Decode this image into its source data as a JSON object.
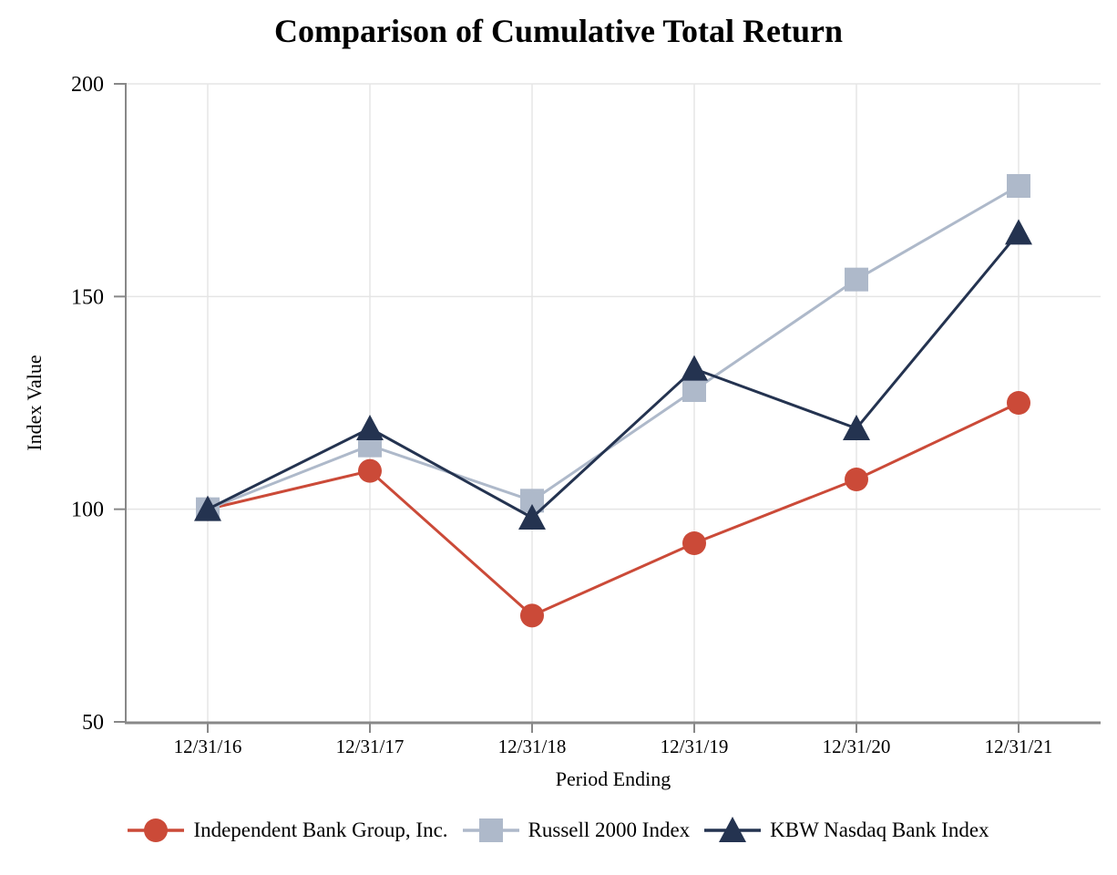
{
  "chart_data": {
    "type": "line",
    "title": "Comparison of Cumulative Total Return",
    "xlabel": "Period Ending",
    "ylabel": "Index Value",
    "categories": [
      "12/31/16",
      "12/31/17",
      "12/31/18",
      "12/31/19",
      "12/31/20",
      "12/31/21"
    ],
    "y_ticks": [
      200,
      150,
      100,
      50
    ],
    "ylim": [
      50,
      200
    ],
    "grid": true,
    "legend_position": "bottom",
    "series": [
      {
        "name": "Independent Bank Group, Inc.",
        "marker": "circle",
        "color": "#cb4a38",
        "values": [
          100,
          109,
          75,
          92,
          107,
          125
        ]
      },
      {
        "name": "Russell 2000 Index",
        "marker": "square",
        "color": "#aeb9ca",
        "values": [
          100,
          115,
          102,
          128,
          154,
          176
        ]
      },
      {
        "name": "KBW Nasdaq Bank Index",
        "marker": "triangle",
        "color": "#243350",
        "values": [
          100,
          119,
          98,
          133,
          119,
          165
        ]
      }
    ],
    "colors": {
      "grid": "#e5e5e5",
      "axis": "#888888",
      "text": "#000000",
      "background": "#ffffff"
    }
  }
}
